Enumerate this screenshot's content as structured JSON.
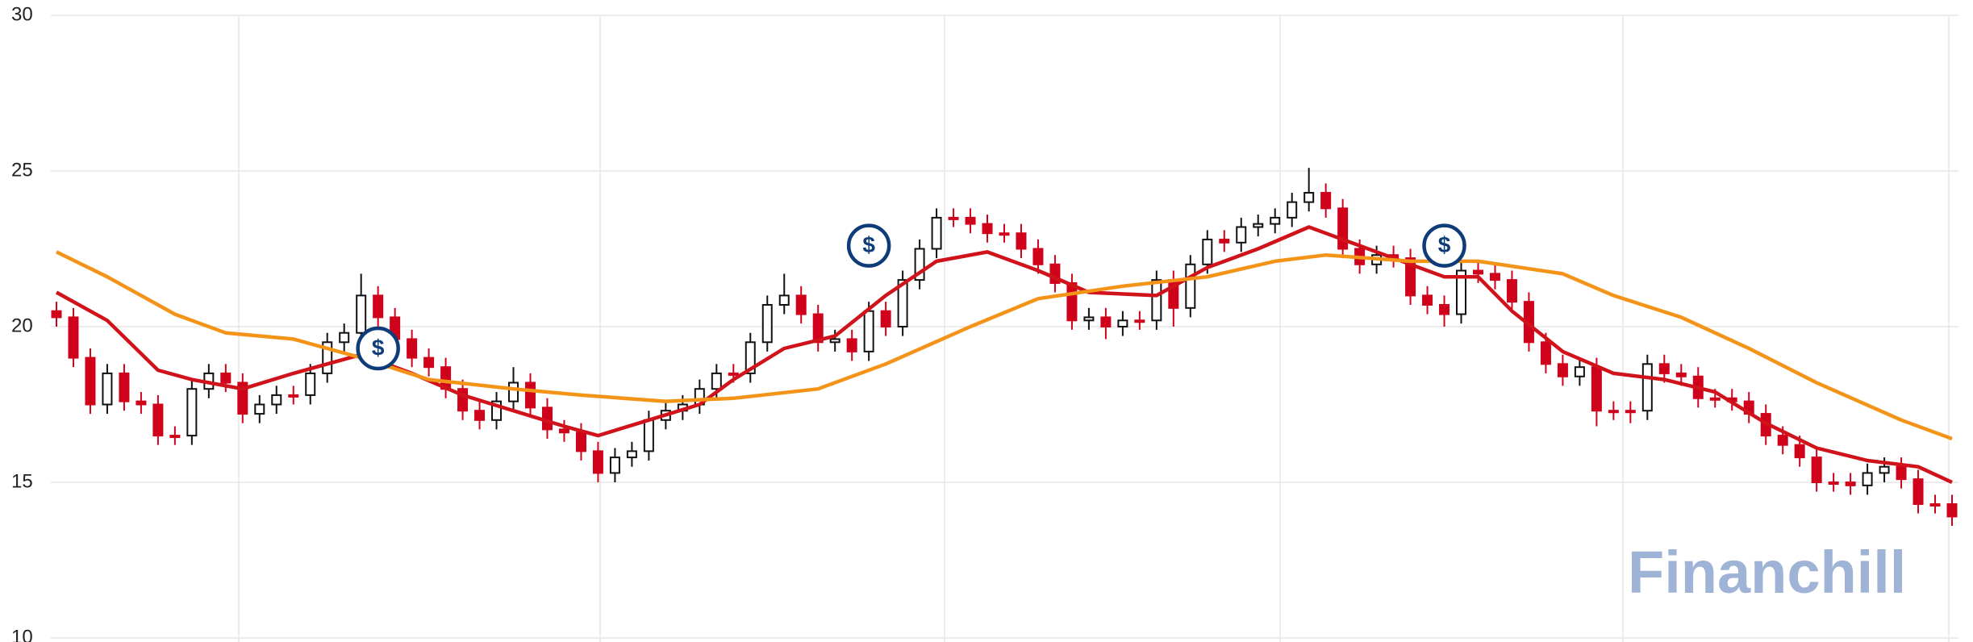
{
  "chart_data": {
    "type": "candlestick",
    "ylim": [
      10,
      30
    ],
    "yticks": [
      10,
      15,
      20,
      25,
      30
    ],
    "grid": true,
    "up_color": "#111111",
    "down_color": "#d0021b",
    "open": [
      20.5,
      20.3,
      19.0,
      17.5,
      18.5,
      17.6,
      17.5,
      16.5,
      16.5,
      18.0,
      18.5,
      18.2,
      17.2,
      17.5,
      17.8,
      17.8,
      18.5,
      19.5,
      19.8,
      21.0,
      20.3,
      19.6,
      19.0,
      18.7,
      18.0,
      17.3,
      17.0,
      17.6,
      18.2,
      17.4,
      16.7,
      16.6,
      16.0,
      15.3,
      15.8,
      16.0,
      17.0,
      17.3,
      17.5,
      18.0,
      18.5,
      18.5,
      19.5,
      20.7,
      21.0,
      20.4,
      19.5,
      19.6,
      19.2,
      20.5,
      20.0,
      21.5,
      22.5,
      23.5,
      23.5,
      23.3,
      23.0,
      23.0,
      22.5,
      22.0,
      21.4,
      20.2,
      20.3,
      20.0,
      20.2,
      20.2,
      21.5,
      20.6,
      22.0,
      22.8,
      22.7,
      23.2,
      23.3,
      23.5,
      24.0,
      24.3,
      23.8,
      22.5,
      22.0,
      22.3,
      22.2,
      21.0,
      20.7,
      20.4,
      21.8,
      21.7,
      21.5,
      20.8,
      19.5,
      18.8,
      18.4,
      18.7,
      17.3,
      17.3,
      17.3,
      18.8,
      18.5,
      18.4,
      17.7,
      17.7,
      17.6,
      17.2,
      16.5,
      16.2,
      15.8,
      15.0,
      15.0,
      14.9,
      15.3,
      15.5,
      15.1,
      14.3,
      14.3
    ],
    "high": [
      20.8,
      20.6,
      19.3,
      18.8,
      18.8,
      17.9,
      17.8,
      16.8,
      18.3,
      18.8,
      18.8,
      18.5,
      17.8,
      18.1,
      18.1,
      18.8,
      19.8,
      20.1,
      21.7,
      21.3,
      20.6,
      19.9,
      19.3,
      19.0,
      18.3,
      17.6,
      17.9,
      18.7,
      18.5,
      17.7,
      17.0,
      16.9,
      16.3,
      16.1,
      16.3,
      17.3,
      17.6,
      17.8,
      18.3,
      18.8,
      18.8,
      19.8,
      21.0,
      21.7,
      21.3,
      20.7,
      19.9,
      19.9,
      20.8,
      20.8,
      21.8,
      22.8,
      23.8,
      23.8,
      23.8,
      23.6,
      23.3,
      23.3,
      22.8,
      22.3,
      21.7,
      20.6,
      20.6,
      20.5,
      20.5,
      21.8,
      21.8,
      22.3,
      23.1,
      23.1,
      23.5,
      23.6,
      23.8,
      24.3,
      25.1,
      24.6,
      24.1,
      22.8,
      22.6,
      22.6,
      22.5,
      21.3,
      21.0,
      22.1,
      22.1,
      22.0,
      21.8,
      21.1,
      19.8,
      19.1,
      19.0,
      19.0,
      17.6,
      17.6,
      19.1,
      19.1,
      18.8,
      18.7,
      18.0,
      18.0,
      17.9,
      17.5,
      16.8,
      16.5,
      16.1,
      15.3,
      15.3,
      15.6,
      15.8,
      15.8,
      15.4,
      14.6,
      14.6
    ],
    "low": [
      20.0,
      18.7,
      17.2,
      17.2,
      17.3,
      17.2,
      16.2,
      16.2,
      16.2,
      17.7,
      17.9,
      16.9,
      16.9,
      17.2,
      17.5,
      17.5,
      18.2,
      19.2,
      19.5,
      20.0,
      19.3,
      18.7,
      18.4,
      17.7,
      17.0,
      16.7,
      16.7,
      17.3,
      17.1,
      16.4,
      16.3,
      15.7,
      15.0,
      15.0,
      15.5,
      15.7,
      16.7,
      17.0,
      17.2,
      17.7,
      18.2,
      18.2,
      19.2,
      20.4,
      20.1,
      19.2,
      19.2,
      18.9,
      18.9,
      19.7,
      19.7,
      21.2,
      22.2,
      23.2,
      23.0,
      22.7,
      22.7,
      22.2,
      21.7,
      21.1,
      19.9,
      19.9,
      19.6,
      19.7,
      19.9,
      19.9,
      20.0,
      20.3,
      21.7,
      22.4,
      22.4,
      22.9,
      23.0,
      23.2,
      23.7,
      23.5,
      22.2,
      21.7,
      21.7,
      21.9,
      20.7,
      20.4,
      20.0,
      20.1,
      21.4,
      21.2,
      20.5,
      19.2,
      18.5,
      18.1,
      18.1,
      16.8,
      17.0,
      16.9,
      17.0,
      18.2,
      18.1,
      17.4,
      17.4,
      17.3,
      16.9,
      16.2,
      15.9,
      15.5,
      14.7,
      14.7,
      14.6,
      14.6,
      15.0,
      14.8,
      14.0,
      14.0,
      13.6
    ],
    "close": [
      20.3,
      19.0,
      17.5,
      18.5,
      17.6,
      17.5,
      16.5,
      16.5,
      18.0,
      18.5,
      18.2,
      17.2,
      17.5,
      17.8,
      17.8,
      18.5,
      19.5,
      19.8,
      21.0,
      20.3,
      19.6,
      19.0,
      18.7,
      18.0,
      17.3,
      17.0,
      17.6,
      18.2,
      17.4,
      16.7,
      16.6,
      16.0,
      15.3,
      15.8,
      16.0,
      17.0,
      17.3,
      17.5,
      18.0,
      18.5,
      18.5,
      19.5,
      20.7,
      21.0,
      20.4,
      19.5,
      19.6,
      19.2,
      20.5,
      20.0,
      21.5,
      22.5,
      23.5,
      23.5,
      23.3,
      23.0,
      23.0,
      22.5,
      22.0,
      21.4,
      20.2,
      20.3,
      20.0,
      20.2,
      20.2,
      21.5,
      20.6,
      22.0,
      22.8,
      22.7,
      23.2,
      23.3,
      23.5,
      24.0,
      24.3,
      23.8,
      22.5,
      22.0,
      22.3,
      22.2,
      21.0,
      20.7,
      20.4,
      21.8,
      21.7,
      21.5,
      20.8,
      19.5,
      18.8,
      18.4,
      18.7,
      17.3,
      17.3,
      17.3,
      18.8,
      18.5,
      18.4,
      17.7,
      17.7,
      17.6,
      17.2,
      16.5,
      16.2,
      15.8,
      15.0,
      15.0,
      14.9,
      15.3,
      15.5,
      15.1,
      14.3,
      14.3,
      13.9
    ],
    "lines": [
      {
        "color": "#d0121b",
        "x": [
          0,
          3,
          6,
          8,
          11,
          14,
          18,
          21,
          24,
          27,
          30,
          32,
          35,
          38,
          40,
          43,
          46,
          49,
          52,
          55,
          58,
          61,
          65,
          68,
          71,
          74,
          75,
          77,
          80,
          82,
          84,
          86,
          89,
          92,
          95,
          98,
          101,
          104,
          107,
          110,
          112
        ],
        "values": [
          21.1,
          20.2,
          18.6,
          18.3,
          18.0,
          18.5,
          19.1,
          18.5,
          17.8,
          17.3,
          16.8,
          16.5,
          17.0,
          17.5,
          18.3,
          19.3,
          19.7,
          21.0,
          22.1,
          22.4,
          21.8,
          21.1,
          21.0,
          21.9,
          22.5,
          23.2,
          23.0,
          22.6,
          22.0,
          21.6,
          21.6,
          20.5,
          19.2,
          18.5,
          18.3,
          17.9,
          16.9,
          16.1,
          15.7,
          15.5,
          15.0
        ]
      },
      {
        "color": "#f39418",
        "x": [
          0,
          3,
          7,
          10,
          14,
          18,
          22,
          27,
          31,
          36,
          40,
          45,
          49,
          54,
          58,
          63,
          68,
          72,
          75,
          80,
          84,
          89,
          92,
          96,
          100,
          104,
          109,
          112
        ],
        "values": [
          22.4,
          21.6,
          20.4,
          19.8,
          19.6,
          19.0,
          18.3,
          18.0,
          17.8,
          17.6,
          17.7,
          18.0,
          18.8,
          20.0,
          20.9,
          21.3,
          21.6,
          22.1,
          22.3,
          22.1,
          22.1,
          21.7,
          21.0,
          20.3,
          19.3,
          18.2,
          17.0,
          16.4
        ]
      }
    ],
    "markers": [
      {
        "x": 19,
        "y": 19.3,
        "label": "$"
      },
      {
        "x": 48,
        "y": 22.6,
        "label": "$"
      },
      {
        "x": 82,
        "y": 22.6,
        "label": "$"
      }
    ],
    "watermark": "Financhill"
  }
}
